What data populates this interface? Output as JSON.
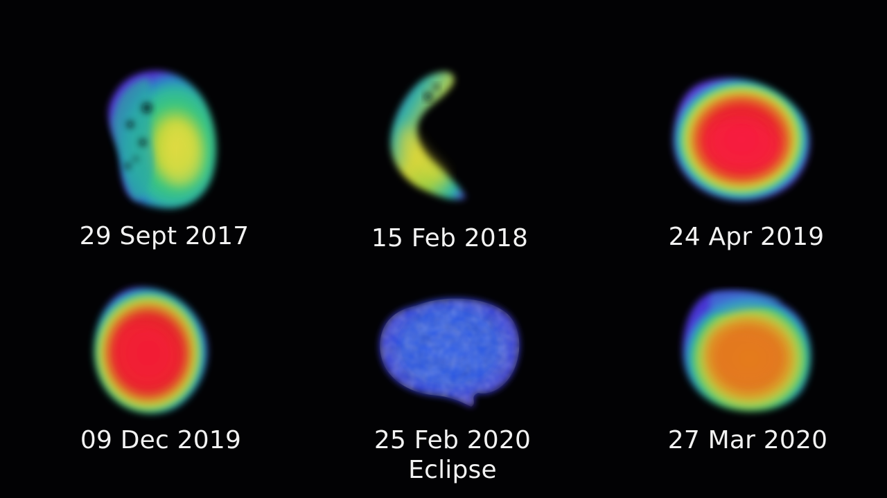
{
  "panels": [
    {
      "date": "29 Sept 2017",
      "note": ""
    },
    {
      "date": "15 Feb 2018",
      "note": ""
    },
    {
      "date": "24 Apr 2019",
      "note": ""
    },
    {
      "date": "09 Dec 2019",
      "note": ""
    },
    {
      "date": "25 Feb 2020",
      "note": "Eclipse"
    },
    {
      "date": "27 Mar 2020",
      "note": ""
    }
  ],
  "colors": {
    "background": "#020204",
    "cold": "#3b2bd6",
    "cool": "#2e8fd0",
    "mid": "#39d07a",
    "warm": "#e4e04a",
    "hot": "#f0222e"
  }
}
